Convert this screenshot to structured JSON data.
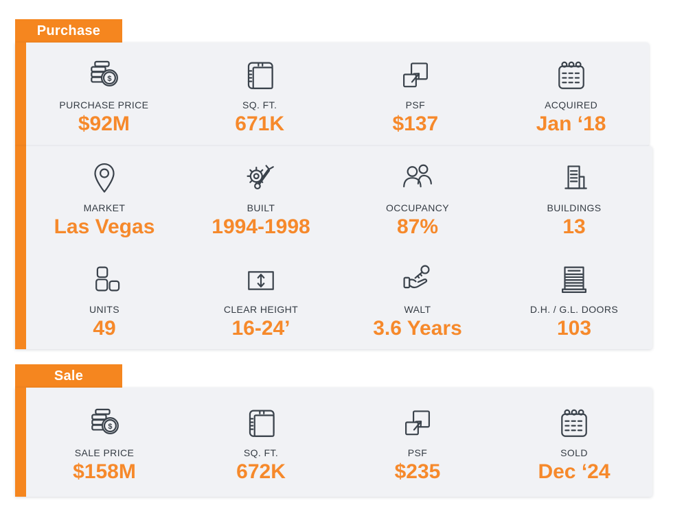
{
  "theme": {
    "accent": "#F5861F",
    "value_color": "#F6892B",
    "icon_ink": "#3A424B",
    "label_color": "#343B43",
    "card_bg": "#F1F2F5",
    "tab_text_color": "#FFFFFF"
  },
  "sections": [
    {
      "id": "purchase",
      "tab_label": "Purchase",
      "panels": [
        {
          "rows": [
            [
              {
                "icon": "coins-dollar-icon",
                "label": "PURCHASE PRICE",
                "value": "$92M"
              },
              {
                "icon": "area-measure-icon",
                "label": "SQ. FT.",
                "value": "671K"
              },
              {
                "icon": "overlap-squares-arrow-icon",
                "label": "PSF",
                "value": "$137"
              },
              {
                "icon": "calendar-icon",
                "label": "ACQUIRED",
                "value": "Jan ‘18"
              }
            ]
          ]
        },
        {
          "rows": [
            [
              {
                "icon": "map-pin-icon",
                "label": "MARKET",
                "value": "Las Vegas"
              },
              {
                "icon": "gear-wrench-icon",
                "label": "BUILT",
                "value": "1994-1998"
              },
              {
                "icon": "people-icon",
                "label": "OCCUPANCY",
                "value": "87%"
              },
              {
                "icon": "buildings-icon",
                "label": "BUILDINGS",
                "value": "13"
              }
            ],
            [
              {
                "icon": "unit-blocks-icon",
                "label": "UNITS",
                "value": "49"
              },
              {
                "icon": "clear-height-arrow-icon",
                "label": "CLEAR HEIGHT",
                "value": "16-24’"
              },
              {
                "icon": "key-in-hand-icon",
                "label": "WALT",
                "value": "3.6 Years"
              },
              {
                "icon": "garage-door-icon",
                "label": "D.H. / G.L. DOORS",
                "value": "103"
              }
            ]
          ]
        }
      ]
    },
    {
      "id": "sale",
      "tab_label": "Sale",
      "panels": [
        {
          "rows": [
            [
              {
                "icon": "coins-dollar-icon",
                "label": "SALE PRICE",
                "value": "$158M"
              },
              {
                "icon": "area-measure-icon",
                "label": "SQ. FT.",
                "value": "672K"
              },
              {
                "icon": "overlap-squares-arrow-icon",
                "label": "PSF",
                "value": "$235"
              },
              {
                "icon": "calendar-icon",
                "label": "SOLD",
                "value": "Dec ‘24"
              }
            ]
          ]
        }
      ]
    }
  ]
}
